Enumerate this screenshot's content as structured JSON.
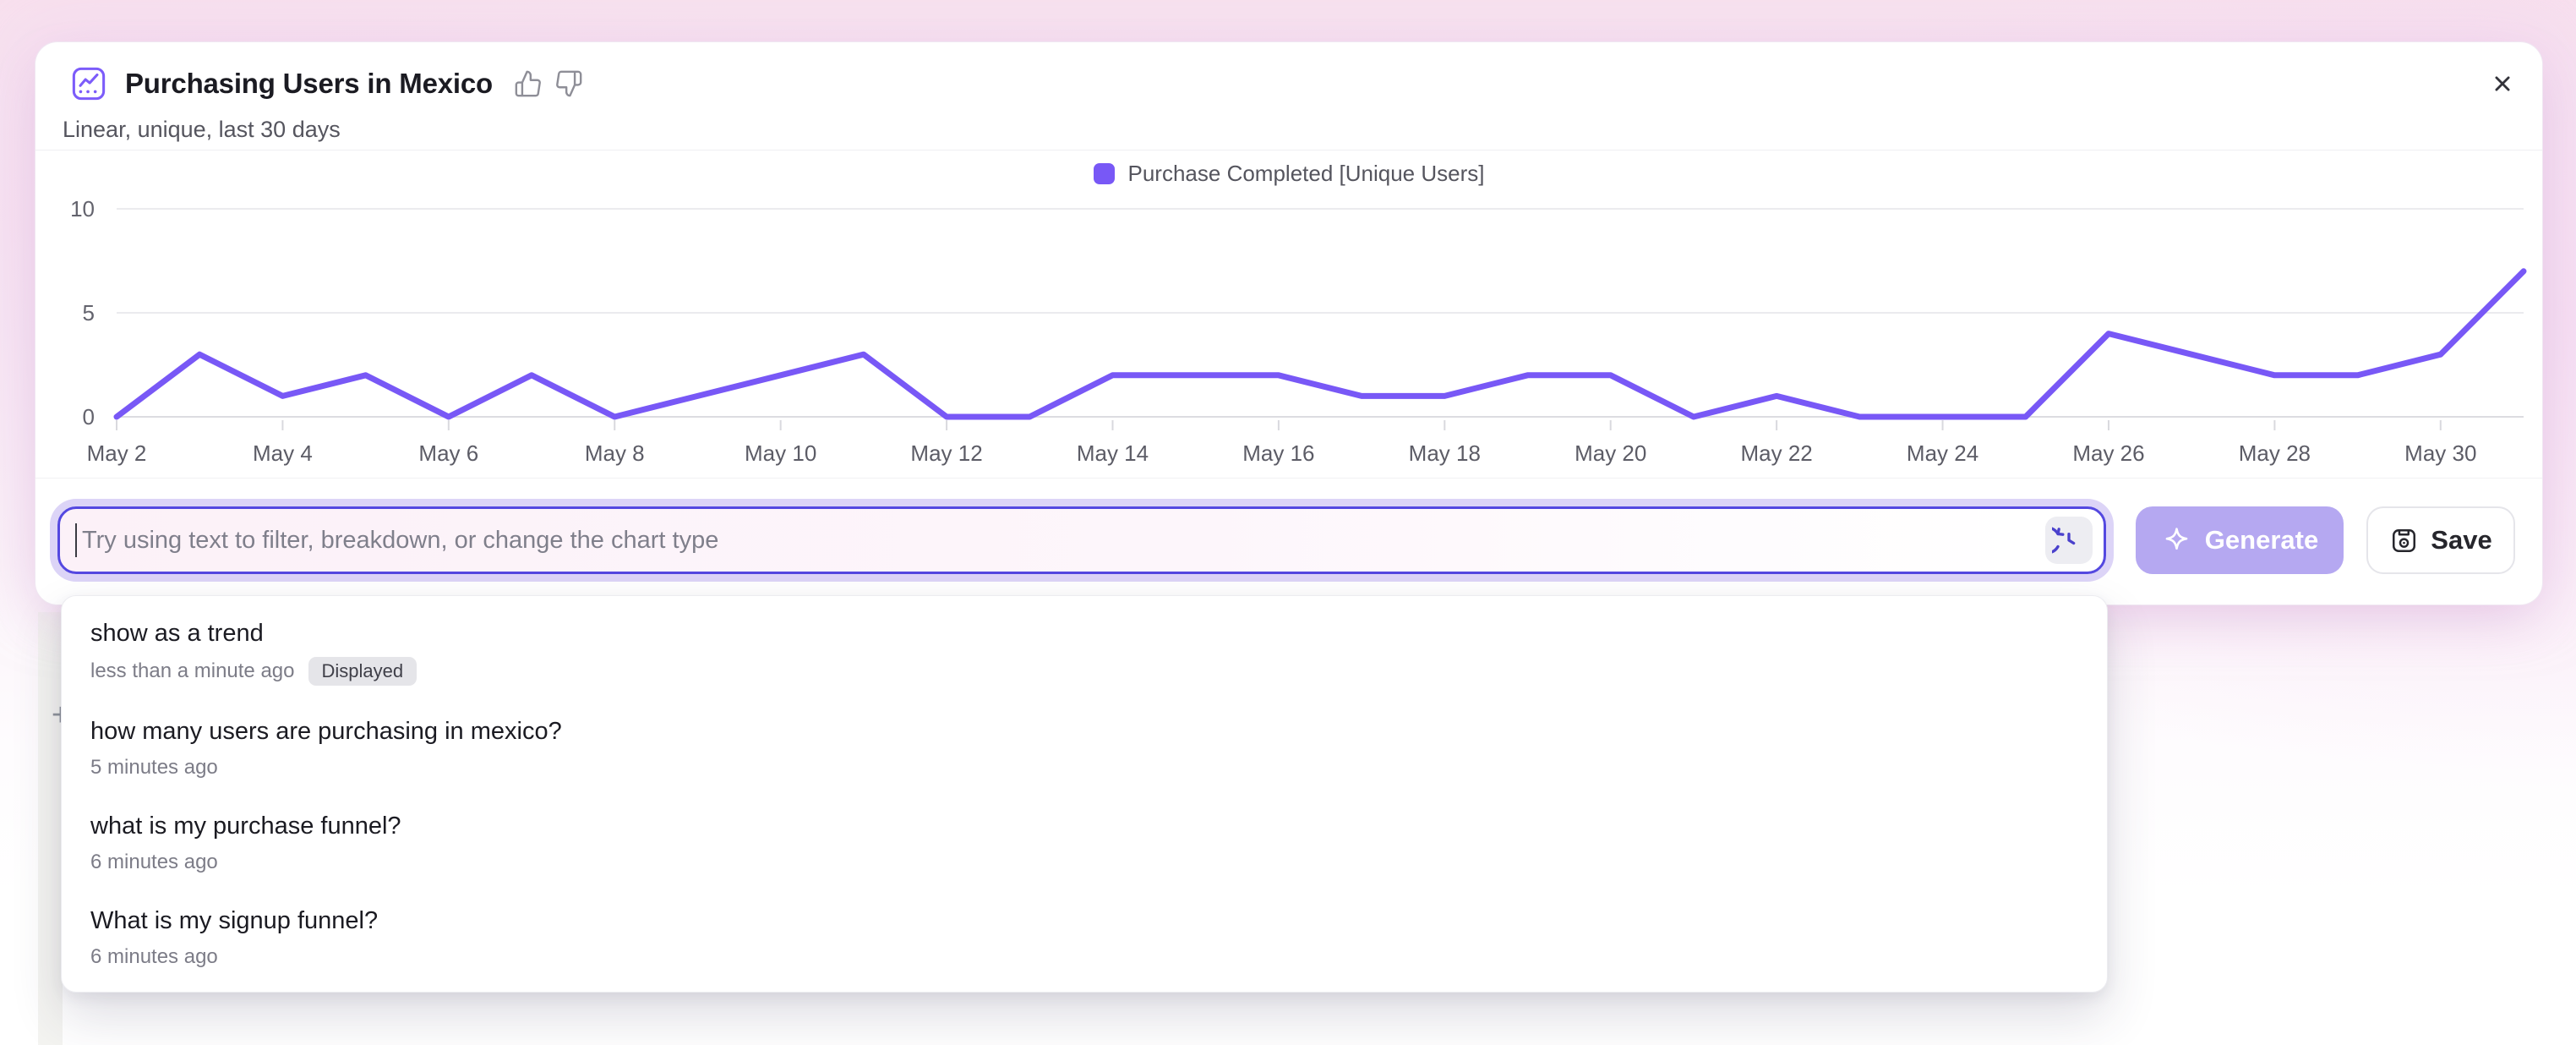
{
  "header": {
    "title": "Purchasing Users in Mexico",
    "subtitle": "Linear, unique, last 30 days",
    "icons": {
      "badge": "line-chart-icon",
      "feedback_positive": "thumbs-up-icon",
      "feedback_negative": "thumbs-down-icon",
      "close": "close-icon"
    }
  },
  "legend": {
    "label": "Purchase Completed [Unique Users]",
    "color": "#7858f6"
  },
  "chart_data": {
    "type": "line",
    "title": "Purchasing Users in Mexico",
    "x": [
      "May 2",
      "May 3",
      "May 4",
      "May 5",
      "May 6",
      "May 7",
      "May 8",
      "May 9",
      "May 10",
      "May 11",
      "May 12",
      "May 13",
      "May 14",
      "May 15",
      "May 16",
      "May 17",
      "May 18",
      "May 19",
      "May 20",
      "May 21",
      "May 22",
      "May 23",
      "May 24",
      "May 25",
      "May 26",
      "May 27",
      "May 28",
      "May 29",
      "May 30",
      "May 31"
    ],
    "x_tick_every": 2,
    "series": [
      {
        "name": "Purchase Completed [Unique Users]",
        "color": "#7858f6",
        "values": [
          0,
          3,
          1,
          2,
          0,
          2,
          0,
          1,
          2,
          3,
          0,
          0,
          2,
          2,
          2,
          1,
          1,
          2,
          2,
          0,
          1,
          0,
          0,
          0,
          4,
          3,
          2,
          2,
          3,
          7
        ]
      }
    ],
    "xlabel": "",
    "ylabel": "",
    "ylim": [
      0,
      10
    ],
    "yticks": [
      0,
      5,
      10
    ],
    "grid": true,
    "legend_position": "top-center"
  },
  "prompt_bar": {
    "placeholder": "Try using text to filter, breakdown, or change the chart type",
    "history_icon": "history-icon",
    "generate": {
      "label": "Generate",
      "icon": "sparkle-icon",
      "disabled": true
    },
    "save": {
      "label": "Save",
      "icon": "save-icon"
    }
  },
  "history_dropdown": {
    "items": [
      {
        "query": "show as a trend",
        "time": "less than a minute ago",
        "badge": "Displayed"
      },
      {
        "query": "how many users are purchasing in mexico?",
        "time": "5 minutes ago"
      },
      {
        "query": "what is my purchase funnel?",
        "time": "6 minutes ago"
      },
      {
        "query": "What is my signup funnel?",
        "time": "6 minutes ago"
      }
    ]
  },
  "background": {
    "plus_glyph": "+"
  },
  "colors": {
    "accent_purple": "#7858f6",
    "icon_purple": "#7c5cfa",
    "history_icon_purple": "#4a41cc",
    "input_border": "#5448e0",
    "input_focus_ring": "#dcd4f7",
    "generate_bg": "#b5a8f1",
    "badge_bg": "#e5e5e9",
    "gridline": "#ebebee",
    "page_pink": "#f8e2ee"
  }
}
